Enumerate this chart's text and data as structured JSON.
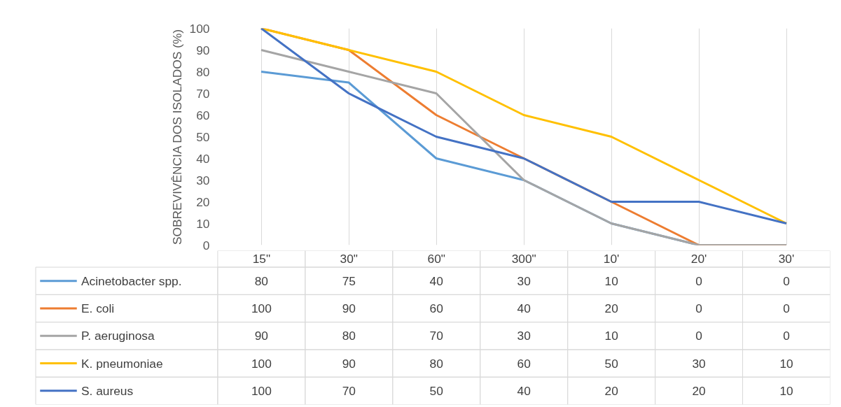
{
  "chart_data": {
    "type": "line",
    "ylabel": "SOBREVIVÊNCIA DOS ISOLADOS (%)",
    "categories": [
      "15\"",
      "30\"",
      "60\"",
      "300\"",
      "10'",
      "20'",
      "30'"
    ],
    "series": [
      {
        "name": "Acinetobacter spp.",
        "color": "#5b9bd5",
        "values": [
          80,
          75,
          40,
          30,
          10,
          0,
          0
        ]
      },
      {
        "name": "E. coli",
        "color": "#ed7d31",
        "values": [
          100,
          90,
          60,
          40,
          20,
          0,
          0
        ]
      },
      {
        "name": "P. aeruginosa",
        "color": "#a5a5a5",
        "values": [
          90,
          80,
          70,
          30,
          10,
          0,
          0
        ]
      },
      {
        "name": "K. pneumoniae",
        "color": "#ffc000",
        "values": [
          100,
          90,
          80,
          60,
          50,
          30,
          10
        ]
      },
      {
        "name": "S. aureus",
        "color": "#4472c4",
        "values": [
          100,
          70,
          50,
          40,
          20,
          20,
          10
        ]
      }
    ],
    "ylim": [
      0,
      100
    ],
    "yticks": [
      0,
      10,
      20,
      30,
      40,
      50,
      60,
      70,
      80,
      90,
      100
    ],
    "grid": "x",
    "legend": "bottom",
    "data_labels": true,
    "marker": "none",
    "line_style": "solid"
  }
}
